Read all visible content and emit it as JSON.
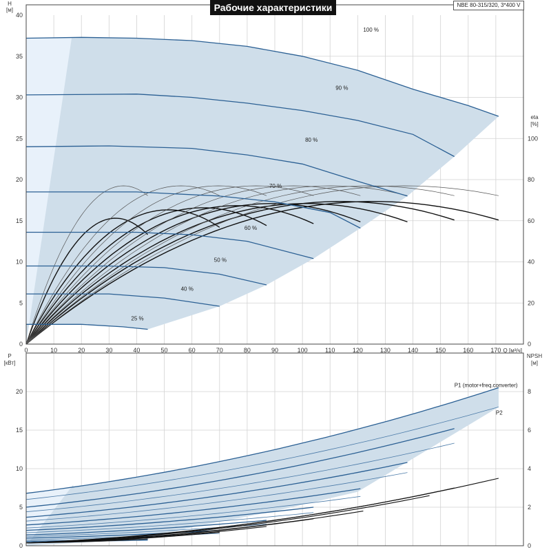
{
  "title": "Рабочие характеристики",
  "model": "NBE 80-315/320, 3*400 V",
  "chart_data": [
    {
      "type": "line",
      "panel": "head",
      "xlabel": "Q [м³/ч]",
      "ylabel": "H",
      "ylabel_unit": "[м]",
      "y2label": "eta",
      "y2label_unit": "[%]",
      "xlim": [
        0,
        180
      ],
      "ylim": [
        0,
        40
      ],
      "y2lim": [
        0,
        160
      ],
      "xticks": [
        0,
        10,
        20,
        30,
        40,
        50,
        60,
        70,
        80,
        90,
        100,
        110,
        120,
        130,
        140,
        150,
        160,
        170
      ],
      "yticks": [
        0,
        5,
        10,
        15,
        20,
        25,
        30,
        35,
        40
      ],
      "y2ticks": [
        0,
        20,
        40,
        60,
        80,
        100
      ],
      "grid": true,
      "curve_labels": [
        "100 %",
        "90 %",
        "80 %",
        "70 %",
        "60 %",
        "50 %",
        "40 %",
        "25 %"
      ],
      "head_curves": [
        {
          "speed": 100,
          "qmax": 171,
          "points": [
            [
              0,
              37.2
            ],
            [
              20,
              37.3
            ],
            [
              40,
              37.2
            ],
            [
              60,
              36.9
            ],
            [
              80,
              36.2
            ],
            [
              100,
              35.0
            ],
            [
              120,
              33.3
            ],
            [
              140,
              31.0
            ],
            [
              160,
              29.0
            ],
            [
              171,
              27.7
            ]
          ]
        },
        {
          "speed": 90,
          "qmax": 155,
          "points": [
            [
              0,
              30.3
            ],
            [
              40,
              30.4
            ],
            [
              60,
              30.0
            ],
            [
              80,
              29.3
            ],
            [
              100,
              28.4
            ],
            [
              120,
              27.2
            ],
            [
              140,
              25.5
            ],
            [
              155,
              22.8
            ]
          ]
        },
        {
          "speed": 80,
          "qmax": 138,
          "points": [
            [
              0,
              24.0
            ],
            [
              30,
              24.1
            ],
            [
              60,
              23.8
            ],
            [
              80,
              23.0
            ],
            [
              100,
              21.9
            ],
            [
              120,
              19.8
            ],
            [
              138,
              18.0
            ]
          ]
        },
        {
          "speed": 70,
          "qmax": 121,
          "points": [
            [
              0,
              18.5
            ],
            [
              40,
              18.5
            ],
            [
              70,
              18.0
            ],
            [
              90,
              17.3
            ],
            [
              110,
              16.0
            ],
            [
              121,
              14.1
            ]
          ]
        },
        {
          "speed": 60,
          "qmax": 104,
          "points": [
            [
              0,
              13.6
            ],
            [
              40,
              13.6
            ],
            [
              60,
              13.3
            ],
            [
              80,
              12.5
            ],
            [
              104,
              10.4
            ]
          ]
        },
        {
          "speed": 50,
          "qmax": 87,
          "points": [
            [
              0,
              9.5
            ],
            [
              30,
              9.5
            ],
            [
              50,
              9.3
            ],
            [
              70,
              8.5
            ],
            [
              87,
              7.2
            ]
          ]
        },
        {
          "speed": 40,
          "qmax": 70,
          "points": [
            [
              0,
              6.1
            ],
            [
              30,
              6.1
            ],
            [
              50,
              5.6
            ],
            [
              70,
              4.6
            ]
          ]
        },
        {
          "speed": 25,
          "qmax": 44,
          "points": [
            [
              0,
              2.4
            ],
            [
              20,
              2.4
            ],
            [
              35,
              2.1
            ],
            [
              44,
              1.8
            ]
          ]
        }
      ],
      "eta_curves": [
        {
          "speed": 100,
          "qmax": 171,
          "eta_max": 68
        },
        {
          "speed": 90,
          "qmax": 155,
          "eta_max": 68
        },
        {
          "speed": 80,
          "qmax": 138,
          "eta_max": 67
        },
        {
          "speed": 70,
          "qmax": 121,
          "eta_max": 67
        },
        {
          "speed": 60,
          "qmax": 104,
          "eta_max": 66
        },
        {
          "speed": 50,
          "qmax": 87,
          "eta_max": 65
        },
        {
          "speed": 40,
          "qmax": 70,
          "eta_max": 64
        },
        {
          "speed": 25,
          "qmax": 44,
          "eta_max": 60
        }
      ],
      "eta_p1_curves": [
        {
          "qmax": 171,
          "eta_max": 77
        },
        {
          "qmax": 155,
          "eta_max": 77
        },
        {
          "qmax": 138,
          "eta_max": 77
        },
        {
          "qmax": 121,
          "eta_max": 77
        },
        {
          "qmax": 104,
          "eta_max": 77
        },
        {
          "qmax": 87,
          "eta_max": 77
        },
        {
          "qmax": 70,
          "eta_max": 77
        },
        {
          "qmax": 44,
          "eta_max": 77
        }
      ],
      "envelope_label": ""
    },
    {
      "type": "line",
      "panel": "power",
      "xlabel": "",
      "ylabel": "P",
      "ylabel_unit": "[кВт]",
      "y2label": "NPSH",
      "y2label_unit": "[м]",
      "xlim": [
        0,
        180
      ],
      "ylim": [
        0,
        25
      ],
      "y2lim": [
        0,
        10
      ],
      "yticks": [
        0,
        5,
        10,
        15,
        20
      ],
      "y2ticks": [
        0,
        2,
        4,
        6,
        8
      ],
      "grid": true,
      "series_labels": [
        "P1 (motor+freq.converter)",
        "P2"
      ],
      "p1_curves": [
        {
          "speed": 100,
          "p0": 6.8,
          "pend": 20.5,
          "qmax": 171
        },
        {
          "speed": 90,
          "p0": 5.0,
          "pend": 15.2,
          "qmax": 155
        },
        {
          "speed": 80,
          "p0": 3.7,
          "pend": 10.8,
          "qmax": 138
        },
        {
          "speed": 70,
          "p0": 2.7,
          "pend": 7.4,
          "qmax": 121
        },
        {
          "speed": 60,
          "p0": 2.0,
          "pend": 5.0,
          "qmax": 104
        },
        {
          "speed": 50,
          "p0": 1.4,
          "pend": 3.3,
          "qmax": 87
        },
        {
          "speed": 40,
          "p0": 1.0,
          "pend": 2.0,
          "qmax": 70
        },
        {
          "speed": 25,
          "p0": 0.6,
          "pend": 0.8,
          "qmax": 44
        }
      ],
      "p2_curves": [
        {
          "speed": 100,
          "p0": 6.0,
          "pend": 18.0,
          "qmax": 171
        },
        {
          "speed": 90,
          "p0": 4.4,
          "pend": 13.3,
          "qmax": 155
        },
        {
          "speed": 80,
          "p0": 3.2,
          "pend": 9.5,
          "qmax": 138
        },
        {
          "speed": 70,
          "p0": 2.3,
          "pend": 6.4,
          "qmax": 121
        },
        {
          "speed": 60,
          "p0": 1.7,
          "pend": 4.3,
          "qmax": 104
        },
        {
          "speed": 50,
          "p0": 1.2,
          "pend": 2.8,
          "qmax": 87
        },
        {
          "speed": 40,
          "p0": 0.8,
          "pend": 1.6,
          "qmax": 70
        },
        {
          "speed": 25,
          "p0": 0.5,
          "pend": 0.7,
          "qmax": 44
        }
      ],
      "npsh_curves": [
        {
          "qmax": 171,
          "npsh_end": 3.5
        },
        {
          "qmax": 155,
          "npsh_end": 3.0
        },
        {
          "qmax": 146,
          "npsh_end": 2.6
        },
        {
          "qmax": 122,
          "npsh_end": 1.8
        },
        {
          "qmax": 104,
          "npsh_end": 1.4
        },
        {
          "qmax": 87,
          "npsh_end": 1.0
        },
        {
          "qmax": 70,
          "npsh_end": 0.7
        },
        {
          "qmax": 44,
          "npsh_end": 0.35
        }
      ]
    }
  ]
}
